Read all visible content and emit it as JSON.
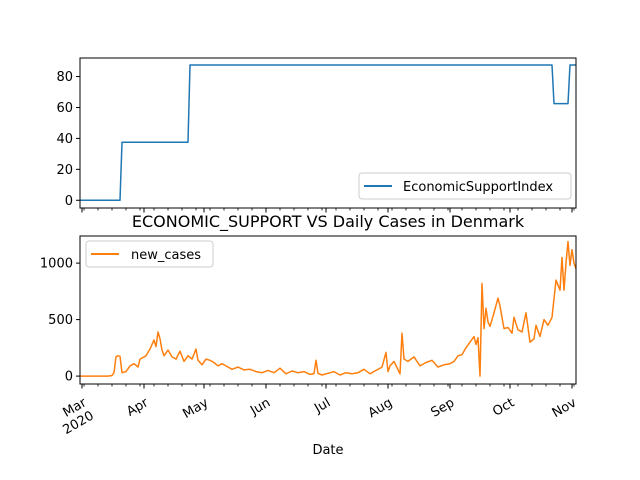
{
  "chart_data": [
    {
      "type": "line",
      "title": "",
      "xlabel": "",
      "ylabel": "",
      "xlim": [
        "2020-02-29",
        "2020-11-03"
      ],
      "ylim": [
        -5,
        92
      ],
      "yticks": [
        0,
        20,
        40,
        60,
        80
      ],
      "grid": false,
      "legend_position": "lower-right",
      "series": [
        {
          "name": "EconomicSupportIndex",
          "color": "#1f77b4",
          "x": [
            "2020-02-29",
            "2020-03-20",
            "2020-03-21",
            "2020-04-23",
            "2020-04-24",
            "2020-10-22",
            "2020-10-23",
            "2020-10-30",
            "2020-10-31",
            "2020-11-03"
          ],
          "values": [
            0,
            0,
            37.5,
            37.5,
            87.5,
            87.5,
            62.5,
            62.5,
            87.5,
            87.5
          ]
        }
      ]
    },
    {
      "type": "line",
      "title": "ECONOMIC_SUPPORT VS Daily Cases in Denmark",
      "xlabel": "Date",
      "ylabel": "",
      "xlim": [
        "2020-02-29",
        "2020-11-03"
      ],
      "ylim": [
        -70,
        1240
      ],
      "yticks": [
        0,
        500,
        1000
      ],
      "xticks": [
        {
          "date": "2020-03-01",
          "label": "Mar",
          "sublabel": "2020"
        },
        {
          "date": "2020-04-01",
          "label": "Apr",
          "sublabel": ""
        },
        {
          "date": "2020-05-01",
          "label": "May",
          "sublabel": ""
        },
        {
          "date": "2020-06-01",
          "label": "Jun",
          "sublabel": ""
        },
        {
          "date": "2020-07-01",
          "label": "Jul",
          "sublabel": ""
        },
        {
          "date": "2020-08-01",
          "label": "Aug",
          "sublabel": ""
        },
        {
          "date": "2020-09-01",
          "label": "Sep",
          "sublabel": ""
        },
        {
          "date": "2020-10-01",
          "label": "Oct",
          "sublabel": ""
        },
        {
          "date": "2020-11-01",
          "label": "Nov",
          "sublabel": ""
        }
      ],
      "grid": false,
      "legend_position": "upper-left",
      "series": [
        {
          "name": "new_cases",
          "color": "#ff7f0e",
          "x": [
            "2020-02-29",
            "2020-03-05",
            "2020-03-10",
            "2020-03-14",
            "2020-03-16",
            "2020-03-17",
            "2020-03-18",
            "2020-03-19",
            "2020-03-20",
            "2020-03-21",
            "2020-03-23",
            "2020-03-25",
            "2020-03-27",
            "2020-03-29",
            "2020-03-30",
            "2020-03-31",
            "2020-04-02",
            "2020-04-04",
            "2020-04-06",
            "2020-04-07",
            "2020-04-08",
            "2020-04-09",
            "2020-04-10",
            "2020-04-11",
            "2020-04-13",
            "2020-04-15",
            "2020-04-17",
            "2020-04-19",
            "2020-04-21",
            "2020-04-23",
            "2020-04-25",
            "2020-04-27",
            "2020-04-28",
            "2020-04-30",
            "2020-05-02",
            "2020-05-04",
            "2020-05-06",
            "2020-05-08",
            "2020-05-10",
            "2020-05-12",
            "2020-05-15",
            "2020-05-18",
            "2020-05-21",
            "2020-05-24",
            "2020-05-27",
            "2020-05-30",
            "2020-06-02",
            "2020-06-05",
            "2020-06-08",
            "2020-06-11",
            "2020-06-14",
            "2020-06-17",
            "2020-06-20",
            "2020-06-23",
            "2020-06-25",
            "2020-06-26",
            "2020-06-27",
            "2020-06-29",
            "2020-07-02",
            "2020-07-05",
            "2020-07-08",
            "2020-07-11",
            "2020-07-14",
            "2020-07-17",
            "2020-07-20",
            "2020-07-23",
            "2020-07-26",
            "2020-07-29",
            "2020-07-31",
            "2020-08-01",
            "2020-08-02",
            "2020-08-04",
            "2020-08-07",
            "2020-08-08",
            "2020-08-09",
            "2020-08-11",
            "2020-08-14",
            "2020-08-17",
            "2020-08-20",
            "2020-08-23",
            "2020-08-26",
            "2020-08-29",
            "2020-09-01",
            "2020-09-03",
            "2020-09-05",
            "2020-09-07",
            "2020-09-09",
            "2020-09-11",
            "2020-09-13",
            "2020-09-14",
            "2020-09-15",
            "2020-09-16",
            "2020-09-17",
            "2020-09-18",
            "2020-09-19",
            "2020-09-20",
            "2020-09-21",
            "2020-09-23",
            "2020-09-25",
            "2020-09-26",
            "2020-09-28",
            "2020-09-30",
            "2020-10-02",
            "2020-10-03",
            "2020-10-05",
            "2020-10-07",
            "2020-10-09",
            "2020-10-11",
            "2020-10-13",
            "2020-10-14",
            "2020-10-16",
            "2020-10-18",
            "2020-10-20",
            "2020-10-22",
            "2020-10-24",
            "2020-10-26",
            "2020-10-27",
            "2020-10-28",
            "2020-10-29",
            "2020-10-30",
            "2020-10-31",
            "2020-11-01",
            "2020-11-02",
            "2020-11-03"
          ],
          "values": [
            0,
            0,
            0,
            0,
            5,
            30,
            170,
            180,
            175,
            30,
            40,
            90,
            110,
            80,
            150,
            160,
            180,
            240,
            320,
            260,
            390,
            330,
            230,
            180,
            230,
            170,
            150,
            220,
            130,
            180,
            150,
            240,
            140,
            100,
            150,
            140,
            120,
            90,
            110,
            90,
            60,
            80,
            55,
            60,
            40,
            30,
            50,
            30,
            70,
            20,
            45,
            30,
            40,
            15,
            20,
            140,
            25,
            10,
            25,
            40,
            10,
            30,
            20,
            30,
            60,
            20,
            50,
            80,
            210,
            40,
            90,
            130,
            20,
            380,
            150,
            130,
            170,
            90,
            120,
            140,
            80,
            100,
            110,
            130,
            180,
            190,
            250,
            300,
            350,
            280,
            340,
            0,
            820,
            420,
            600,
            480,
            440,
            560,
            690,
            620,
            420,
            430,
            380,
            520,
            410,
            390,
            560,
            300,
            330,
            450,
            350,
            500,
            450,
            520,
            850,
            760,
            1050,
            760,
            1000,
            1190,
            980,
            1120,
            1000,
            950
          ]
        }
      ]
    }
  ]
}
